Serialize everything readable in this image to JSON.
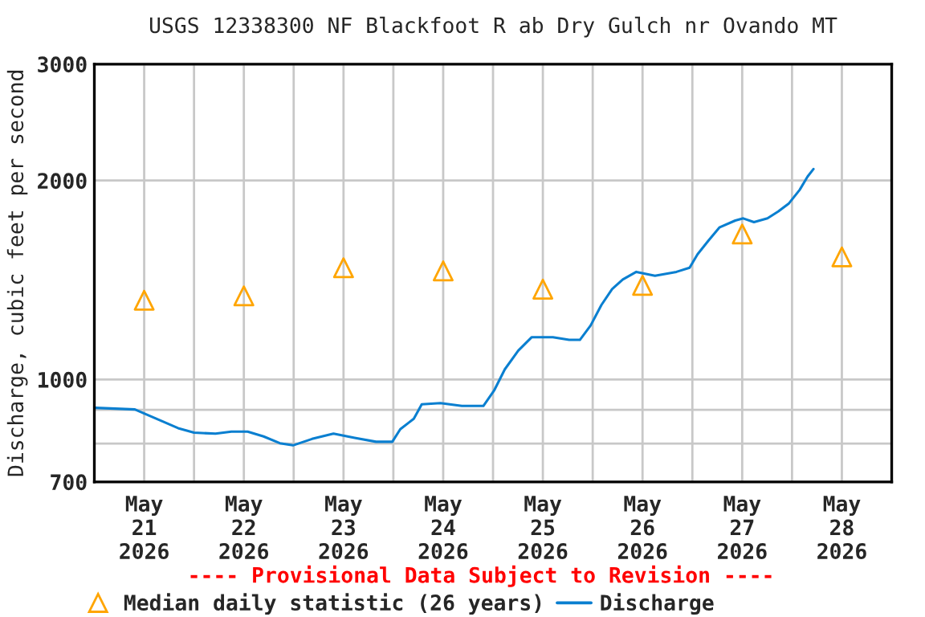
{
  "chart_data": {
    "type": "line",
    "title": "USGS 12338300 NF Blackfoot R ab Dry Gulch nr Ovando MT",
    "ylabel": "Discharge, cubic feet per second",
    "annotations": [
      "---- Provisional Data Subject to Revision ----"
    ],
    "log": "y",
    "grid": true,
    "legend": "bottom",
    "xlim": [
      "2026-05-21T00:00",
      "2026-05-29T00:00"
    ],
    "xticks": [
      {
        "value": "2026-05-21T12:00",
        "label": "May\n21\n2026"
      },
      {
        "value": "2026-05-22T12:00",
        "label": "May\n22\n2026"
      },
      {
        "value": "2026-05-23T12:00",
        "label": "May\n23\n2026"
      },
      {
        "value": "2026-05-24T12:00",
        "label": "May\n24\n2026"
      },
      {
        "value": "2026-05-25T12:00",
        "label": "May\n25\n2026"
      },
      {
        "value": "2026-05-26T12:00",
        "label": "May\n26\n2026"
      },
      {
        "value": "2026-05-27T12:00",
        "label": "May\n27\n2026"
      },
      {
        "value": "2026-05-28T12:00",
        "label": "May\n28\n2026"
      },
      {
        "value": "2026-05-22T00:00",
        "label": null
      },
      {
        "value": "2026-05-23T00:00",
        "label": null
      },
      {
        "value": "2026-05-24T00:00",
        "label": null
      },
      {
        "value": "2026-05-25T00:00",
        "label": null
      },
      {
        "value": "2026-05-26T00:00",
        "label": null
      },
      {
        "value": "2026-05-27T00:00",
        "label": null
      },
      {
        "value": "2026-05-28T00:00",
        "label": null
      }
    ],
    "ylim": [
      700,
      3000
    ],
    "yticks": [
      700,
      {
        "value": 800,
        "label": null
      },
      {
        "value": 900,
        "label": null
      },
      1000,
      2000,
      3000
    ],
    "series": [
      {
        "name": "Median daily statistic (26 years)",
        "type": "scatter",
        "marker": "triangle",
        "color": "#ffa500",
        "x": [
          "2026-05-21T12:00",
          "2026-05-22T12:00",
          "2026-05-23T12:00",
          "2026-05-24T12:00",
          "2026-05-25T12:00",
          "2026-05-26T12:00",
          "2026-05-27T12:00",
          "2026-05-28T12:00"
        ],
        "values": [
          1318,
          1338,
          1476,
          1460,
          1370,
          1388,
          1660,
          1533
        ]
      },
      {
        "name": "Discharge",
        "color": "#0a7fd0",
        "x": [
          "2026-05-21T00:15",
          "2026-05-21T09:45",
          "2026-05-21T13:40",
          "2026-05-21T16:15",
          "2026-05-21T20:10",
          "2026-05-22T00:00",
          "2026-05-22T05:10",
          "2026-05-22T09:00",
          "2026-05-22T12:55",
          "2026-05-22T16:45",
          "2026-05-22T20:40",
          "2026-05-22T23:50",
          "2026-05-23T04:25",
          "2026-05-23T09:35",
          "2026-05-23T14:40",
          "2026-05-23T19:50",
          "2026-05-23T23:45",
          "2026-05-24T01:40",
          "2026-05-24T04:55",
          "2026-05-24T06:50",
          "2026-05-24T11:20",
          "2026-05-24T16:30",
          "2026-05-24T21:40",
          "2026-05-25T00:15",
          "2026-05-25T02:50",
          "2026-05-25T06:05",
          "2026-05-25T09:20",
          "2026-05-25T14:25",
          "2026-05-25T18:20",
          "2026-05-25T20:55",
          "2026-05-25T23:30",
          "2026-05-26T02:05",
          "2026-05-26T04:40",
          "2026-05-26T07:15",
          "2026-05-26T10:30",
          "2026-05-26T15:00",
          "2026-05-26T20:10",
          "2026-05-26T23:20",
          "2026-05-27T01:15",
          "2026-05-27T03:50",
          "2026-05-27T06:30",
          "2026-05-27T10:20",
          "2026-05-27T12:15",
          "2026-05-27T14:50",
          "2026-05-27T18:05",
          "2026-05-27T20:40",
          "2026-05-27T23:15",
          "2026-05-28T01:50",
          "2026-05-28T03:45",
          "2026-05-28T05:10"
        ],
        "values": [
          906,
          901,
          879,
          865,
          844,
          831,
          828,
          834,
          834,
          820,
          801,
          795,
          813,
          828,
          816,
          805,
          805,
          841,
          872,
          917,
          921,
          912,
          912,
          962,
          1036,
          1106,
          1159,
          1159,
          1148,
          1148,
          1207,
          1296,
          1370,
          1417,
          1455,
          1435,
          1455,
          1476,
          1547,
          1621,
          1698,
          1740,
          1753,
          1730,
          1753,
          1796,
          1847,
          1936,
          2028,
          2082
        ]
      }
    ]
  }
}
